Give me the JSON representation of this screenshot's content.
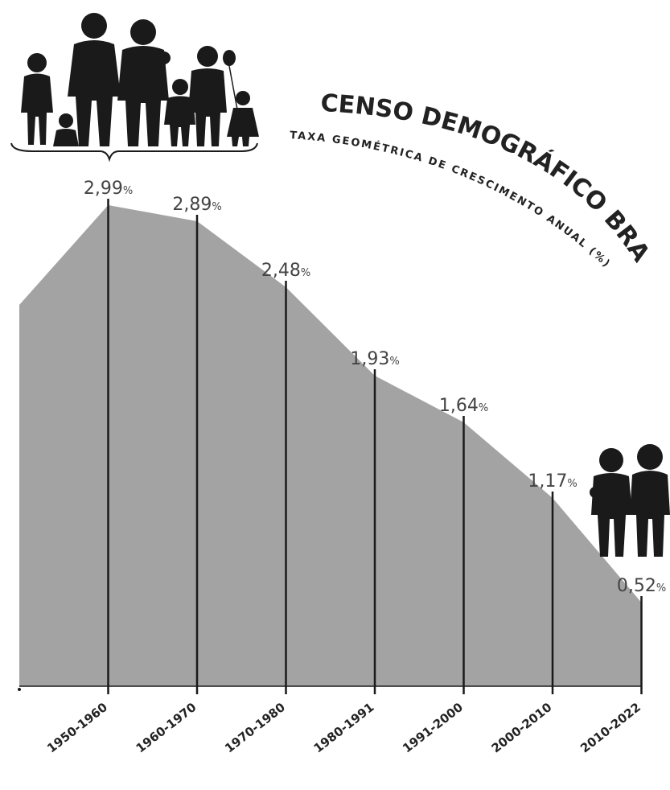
{
  "chart_data": {
    "type": "area",
    "title": "CENSO DEMOGRÁFICO BRASILEIRO",
    "subtitle": "TAXA GEOMÉTRICA DE CRESCIMENTO ANUAL (%)",
    "categories": [
      "1950-1960",
      "1960-1970",
      "1970-1980",
      "1980-1991",
      "1991-2000",
      "2000-2010",
      "2010-2022"
    ],
    "values": [
      2.99,
      2.89,
      2.48,
      1.93,
      1.64,
      1.17,
      0.52
    ],
    "value_labels": [
      "2,99",
      "2,89",
      "2,48",
      "1,93",
      "1,64",
      "1,17",
      "0,52"
    ],
    "unit_suffix": "%",
    "xlabel": "",
    "ylabel": "",
    "grid": false,
    "area_color": "#a3a3a3",
    "line_color": "#1a1a1a",
    "icons": [
      "family-icon",
      "couple-icon"
    ]
  }
}
